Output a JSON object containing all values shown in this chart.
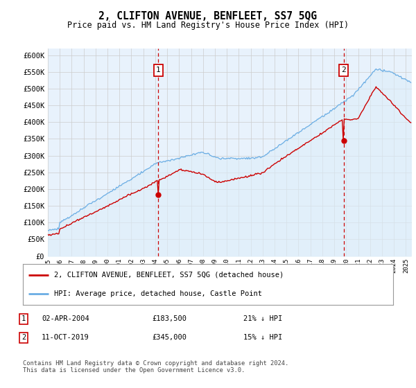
{
  "title": "2, CLIFTON AVENUE, BENFLEET, SS7 5QG",
  "subtitle": "Price paid vs. HM Land Registry's House Price Index (HPI)",
  "ylabel_ticks": [
    "£0",
    "£50K",
    "£100K",
    "£150K",
    "£200K",
    "£250K",
    "£300K",
    "£350K",
    "£400K",
    "£450K",
    "£500K",
    "£550K",
    "£600K"
  ],
  "ytick_values": [
    0,
    50000,
    100000,
    150000,
    200000,
    250000,
    300000,
    350000,
    400000,
    450000,
    500000,
    550000,
    600000
  ],
  "ylim": [
    0,
    620000
  ],
  "xlim_start": 1995.0,
  "xlim_end": 2025.5,
  "hpi_color": "#6aade4",
  "hpi_fill_color": "#d6e8f8",
  "price_color": "#cc0000",
  "vline_color": "#cc0000",
  "background_color": "#ffffff",
  "grid_color": "#cccccc",
  "sale1_x": 2004.25,
  "sale1_y": 183500,
  "sale1_label": "1",
  "sale2_x": 2019.78,
  "sale2_y": 345000,
  "sale2_label": "2",
  "legend_line1": "2, CLIFTON AVENUE, BENFLEET, SS7 5QG (detached house)",
  "legend_line2": "HPI: Average price, detached house, Castle Point",
  "footer": "Contains HM Land Registry data © Crown copyright and database right 2024.\nThis data is licensed under the Open Government Licence v3.0.",
  "title_fontsize": 11,
  "subtitle_fontsize": 9
}
